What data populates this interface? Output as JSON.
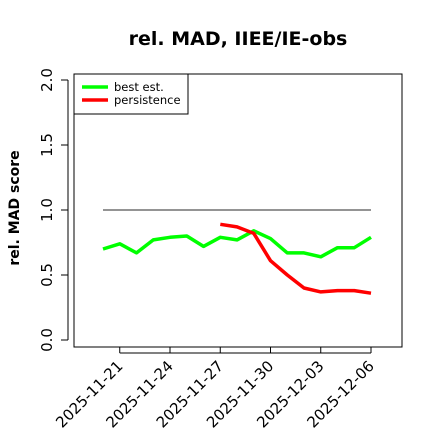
{
  "chart_data": {
    "type": "line",
    "title": "rel. MAD, IIEE/IE-obs",
    "xlabel": "",
    "ylabel": "rel. MAD score",
    "ylim": [
      0.0,
      2.0
    ],
    "yticks": [
      "0.0",
      "0.5",
      "1.0",
      "1.5",
      "2.0"
    ],
    "xticks": [
      "2025-11-21",
      "2025-11-24",
      "2025-11-27",
      "2025-11-30",
      "2025-12-03",
      "2025-12-06"
    ],
    "legend_placement": "top-left",
    "reference_line": {
      "y": 1.0,
      "x_start": "2025-11-20",
      "x_end": "2025-12-06",
      "color": "#555555"
    },
    "series": [
      {
        "name": "best est.",
        "color": "#00ff00",
        "x": [
          "2025-11-20",
          "2025-11-21",
          "2025-11-22",
          "2025-11-23",
          "2025-11-24",
          "2025-11-25",
          "2025-11-26",
          "2025-11-27",
          "2025-11-28",
          "2025-11-29",
          "2025-11-30",
          "2025-12-01",
          "2025-12-02",
          "2025-12-03",
          "2025-12-04",
          "2025-12-05",
          "2025-12-06"
        ],
        "values": [
          0.7,
          0.74,
          0.67,
          0.77,
          0.79,
          0.8,
          0.72,
          0.79,
          0.77,
          0.84,
          0.78,
          0.67,
          0.67,
          0.64,
          0.71,
          0.71,
          0.79
        ]
      },
      {
        "name": "persistence",
        "color": "#ff0000",
        "x": [
          "2025-11-27",
          "2025-11-28",
          "2025-11-29",
          "2025-11-30",
          "2025-12-01",
          "2025-12-02",
          "2025-12-03",
          "2025-12-04",
          "2025-12-05",
          "2025-12-06"
        ],
        "values": [
          0.89,
          0.87,
          0.82,
          0.61,
          0.5,
          0.4,
          0.37,
          0.38,
          0.38,
          0.36
        ]
      }
    ]
  }
}
